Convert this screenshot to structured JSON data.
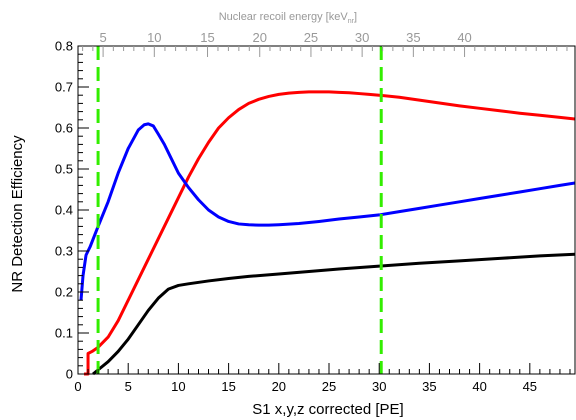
{
  "chart_data": {
    "type": "line",
    "title": "",
    "xlabel": "S1 x,y,z corrected [PE]",
    "ylabel": "NR Detection Efficiency",
    "top_axis_label": "Nuclear recoil energy [keV",
    "top_axis_label_sub": "nr",
    "top_axis_label_tail": "]",
    "xlim": [
      0,
      49.5
    ],
    "ylim": [
      0,
      0.8
    ],
    "x_ticks": [
      0,
      5,
      10,
      15,
      20,
      25,
      30,
      35,
      40,
      45
    ],
    "y_ticks": [
      0,
      0.1,
      0.2,
      0.3,
      0.4,
      0.5,
      0.6,
      0.7,
      0.8
    ],
    "y_tick_labels": [
      "0",
      "0.1",
      "0.2",
      "0.3",
      "0.4",
      "0.5",
      "0.6",
      "0.7",
      "0.8"
    ],
    "top_ticks": [
      {
        "label": "5",
        "x": 2.5
      },
      {
        "label": "10",
        "x": 7.6
      },
      {
        "label": "15",
        "x": 12.9
      },
      {
        "label": "20",
        "x": 18.1
      },
      {
        "label": "25",
        "x": 23.2
      },
      {
        "label": "30",
        "x": 28.3
      },
      {
        "label": "35",
        "x": 33.4
      },
      {
        "label": "40",
        "x": 38.5
      }
    ],
    "series": [
      {
        "color": "#ff0000",
        "points": [
          [
            0.6,
            0
          ],
          [
            1.0,
            0
          ],
          [
            1.0,
            0.05
          ],
          [
            1.4,
            0.055
          ],
          [
            2,
            0.065
          ],
          [
            3,
            0.09
          ],
          [
            4,
            0.13
          ],
          [
            5,
            0.18
          ],
          [
            6,
            0.23
          ],
          [
            7,
            0.28
          ],
          [
            8,
            0.33
          ],
          [
            9,
            0.38
          ],
          [
            10,
            0.43
          ],
          [
            11,
            0.48
          ],
          [
            12,
            0.525
          ],
          [
            13,
            0.565
          ],
          [
            14,
            0.6
          ],
          [
            15,
            0.625
          ],
          [
            16,
            0.645
          ],
          [
            17,
            0.66
          ],
          [
            18,
            0.67
          ],
          [
            19,
            0.677
          ],
          [
            20,
            0.682
          ],
          [
            21,
            0.685
          ],
          [
            22,
            0.687
          ],
          [
            23,
            0.688
          ],
          [
            24,
            0.688
          ],
          [
            25,
            0.688
          ],
          [
            26,
            0.687
          ],
          [
            27,
            0.686
          ],
          [
            28,
            0.684
          ],
          [
            29,
            0.682
          ],
          [
            30,
            0.68
          ],
          [
            32,
            0.675
          ],
          [
            34,
            0.668
          ],
          [
            36,
            0.661
          ],
          [
            38,
            0.654
          ],
          [
            40,
            0.648
          ],
          [
            42,
            0.642
          ],
          [
            44,
            0.636
          ],
          [
            46,
            0.631
          ],
          [
            48,
            0.626
          ],
          [
            49.5,
            0.622
          ]
        ]
      },
      {
        "color": "#0000ff",
        "points": [
          [
            0.3,
            0.18
          ],
          [
            0.5,
            0.24
          ],
          [
            0.8,
            0.29
          ],
          [
            1.2,
            0.31
          ],
          [
            2,
            0.36
          ],
          [
            3,
            0.42
          ],
          [
            4,
            0.49
          ],
          [
            5,
            0.55
          ],
          [
            6,
            0.595
          ],
          [
            6.6,
            0.608
          ],
          [
            7,
            0.61
          ],
          [
            7.5,
            0.605
          ],
          [
            8,
            0.585
          ],
          [
            8.6,
            0.56
          ],
          [
            9.2,
            0.53
          ],
          [
            10,
            0.49
          ],
          [
            11,
            0.455
          ],
          [
            12,
            0.425
          ],
          [
            13,
            0.4
          ],
          [
            14,
            0.383
          ],
          [
            15,
            0.372
          ],
          [
            16,
            0.366
          ],
          [
            17,
            0.364
          ],
          [
            18,
            0.363
          ],
          [
            19,
            0.363
          ],
          [
            20,
            0.364
          ],
          [
            22,
            0.367
          ],
          [
            24,
            0.372
          ],
          [
            26,
            0.378
          ],
          [
            28,
            0.383
          ],
          [
            30,
            0.388
          ],
          [
            32,
            0.396
          ],
          [
            34,
            0.404
          ],
          [
            36,
            0.412
          ],
          [
            38,
            0.42
          ],
          [
            40,
            0.428
          ],
          [
            42,
            0.436
          ],
          [
            44,
            0.444
          ],
          [
            46,
            0.452
          ],
          [
            48,
            0.46
          ],
          [
            49.5,
            0.466
          ]
        ]
      },
      {
        "color": "#000000",
        "points": [
          [
            1.5,
            0
          ],
          [
            2,
            0.01
          ],
          [
            3,
            0.03
          ],
          [
            4,
            0.055
          ],
          [
            5,
            0.085
          ],
          [
            6,
            0.12
          ],
          [
            7,
            0.155
          ],
          [
            8,
            0.185
          ],
          [
            9,
            0.207
          ],
          [
            10,
            0.216
          ],
          [
            11,
            0.22
          ],
          [
            13,
            0.227
          ],
          [
            15,
            0.233
          ],
          [
            17,
            0.238
          ],
          [
            20,
            0.244
          ],
          [
            23,
            0.25
          ],
          [
            26,
            0.256
          ],
          [
            30,
            0.263
          ],
          [
            34,
            0.27
          ],
          [
            38,
            0.276
          ],
          [
            42,
            0.282
          ],
          [
            46,
            0.288
          ],
          [
            49.5,
            0.292
          ]
        ]
      }
    ],
    "thresholds": [
      {
        "x": 2.0,
        "color": "#33ee00",
        "style": "dashed"
      },
      {
        "x": 30.2,
        "color": "#33ee00",
        "style": "dashed"
      }
    ],
    "grid": false,
    "legend": "none"
  }
}
